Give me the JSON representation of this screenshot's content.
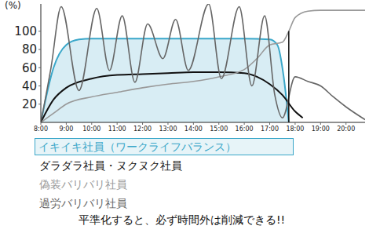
{
  "chart_data": {
    "type": "line",
    "y_label": "(%)",
    "annotation": "平準化すると、必ず時間外は削減できる!!",
    "legend": "bottom",
    "grid": false,
    "xlim": [
      8,
      20.75
    ],
    "xticks": [
      {
        "value": 8,
        "label": "8:00"
      },
      {
        "value": 9,
        "label": "9:00"
      },
      {
        "value": 10,
        "label": "10:00"
      },
      {
        "value": 11,
        "label": "11:00"
      },
      {
        "value": 12,
        "label": "12:00"
      },
      {
        "value": 13,
        "label": "13:00"
      },
      {
        "value": 14,
        "label": "14:00"
      },
      {
        "value": 15,
        "label": "15:00"
      },
      {
        "value": 16,
        "label": "16:00"
      },
      {
        "value": 17,
        "label": "17:00"
      },
      {
        "value": 18,
        "label": "18:00"
      },
      {
        "value": 19,
        "label": "19:00"
      },
      {
        "value": 20,
        "label": "20:00"
      }
    ],
    "ylim": [
      0,
      130
    ],
    "yticks": [
      20,
      40,
      60,
      80,
      100
    ],
    "vline": {
      "x": 17.75,
      "y": [
        0,
        100
      ]
    },
    "series": [
      {
        "name": "イキイキ社員（ワークライフバランス）",
        "type": "area",
        "color": "#3aa7c9",
        "x": [
          8,
          8.5,
          9,
          9.5,
          10,
          11,
          12,
          13,
          14,
          15,
          16,
          17,
          17.3,
          17.55,
          17.75
        ],
        "values": [
          0,
          60,
          85,
          91,
          92,
          92,
          92,
          92,
          92,
          92,
          92,
          91,
          85,
          50,
          0
        ]
      },
      {
        "name": "ダラダラ社員・ヌクヌク社員",
        "type": "line",
        "color": "#111111",
        "x": [
          8,
          8.5,
          9,
          10,
          11,
          12,
          13,
          14,
          15,
          16,
          16.5,
          17,
          17.5,
          18,
          18.3
        ],
        "values": [
          0,
          25,
          38,
          48,
          52,
          53,
          54,
          55,
          55,
          54,
          50,
          42,
          30,
          12,
          5
        ]
      },
      {
        "name": "偽装バリバリ社員",
        "type": "line",
        "color": "#999999",
        "x": [
          8,
          8.5,
          9,
          10,
          11,
          12,
          13,
          14,
          15,
          16,
          16.5,
          17,
          17.5,
          17.75,
          18,
          18.5,
          19,
          20,
          20.75
        ],
        "values": [
          0,
          10,
          20,
          28,
          33,
          38,
          42,
          45,
          50,
          58,
          70,
          85,
          88,
          100,
          115,
          122,
          123,
          123,
          123
        ]
      },
      {
        "name": "過労バリバリ社員",
        "type": "line",
        "color": "#666666",
        "x": [
          8,
          8.4,
          8.8,
          9.5,
          10.2,
          10.7,
          11.2,
          11.7,
          12.2,
          12.8,
          13.3,
          13.8,
          14.6,
          15.1,
          15.8,
          16.3,
          16.8,
          17.2,
          17.5,
          18,
          18.5,
          19,
          19.5,
          20,
          20.75
        ],
        "values": [
          0,
          60,
          127,
          35,
          125,
          57,
          117,
          44,
          108,
          70,
          113,
          57,
          130,
          48,
          127,
          40,
          117,
          30,
          5,
          50,
          45,
          40,
          28,
          17,
          3
        ]
      }
    ]
  }
}
